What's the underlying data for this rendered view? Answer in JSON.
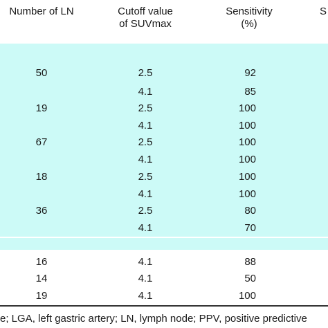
{
  "header": {
    "col_ln": "Number of LN",
    "col_cutoff_line1": "Cutoff value",
    "col_cutoff_line2": "of SUVmax",
    "col_sens_line1": "Sensitivity",
    "col_sens_line2": "(%)",
    "col_clipped": "S"
  },
  "rows": [
    {
      "ln": "50",
      "cutoff": "2.5",
      "sensitivity": "92"
    },
    {
      "ln": "",
      "cutoff": "4.1",
      "sensitivity": "85"
    },
    {
      "ln": "19",
      "cutoff": "2.5",
      "sensitivity": "100"
    },
    {
      "ln": "",
      "cutoff": "4.1",
      "sensitivity": "100"
    },
    {
      "ln": "67",
      "cutoff": "2.5",
      "sensitivity": "100"
    },
    {
      "ln": "",
      "cutoff": "4.1",
      "sensitivity": "100"
    },
    {
      "ln": "18",
      "cutoff": "2.5",
      "sensitivity": "100"
    },
    {
      "ln": "",
      "cutoff": "4.1",
      "sensitivity": "100"
    },
    {
      "ln": "36",
      "cutoff": "2.5",
      "sensitivity": "80"
    },
    {
      "ln": "",
      "cutoff": "4.1",
      "sensitivity": "70"
    },
    {
      "ln": "16",
      "cutoff": "4.1",
      "sensitivity": "88"
    },
    {
      "ln": "14",
      "cutoff": "4.1",
      "sensitivity": "50"
    },
    {
      "ln": "19",
      "cutoff": "4.1",
      "sensitivity": "100"
    }
  ],
  "footnote": "e; LGA, left gastric artery; LN, lymph node; PPV, positive predictive",
  "colors": {
    "band": "#ccfaf7",
    "text": "#1a1a1a",
    "rule": "#333333"
  }
}
